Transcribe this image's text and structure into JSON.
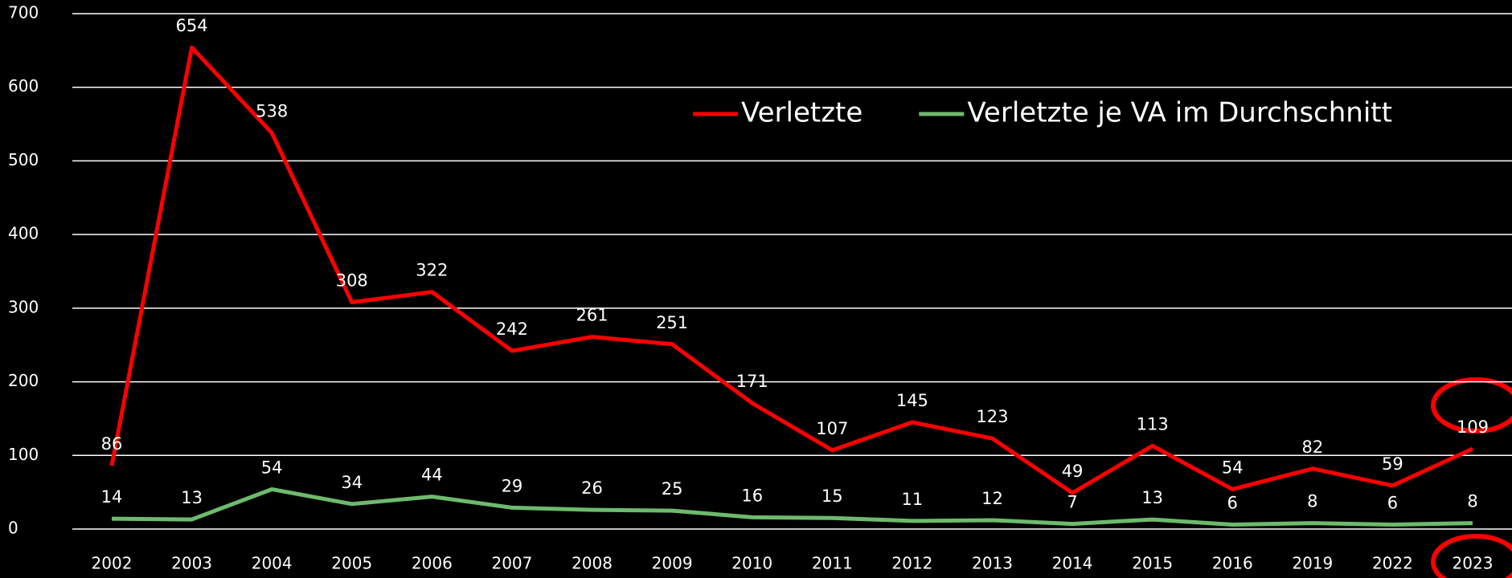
{
  "chart_data": {
    "type": "line",
    "categories": [
      "2002",
      "2003",
      "2004",
      "2005",
      "2006",
      "2007",
      "2008",
      "2009",
      "2010",
      "2011",
      "2012",
      "2013",
      "2014",
      "2015",
      "2016",
      "2019",
      "2022",
      "2023"
    ],
    "series": [
      {
        "name": "Verletzte",
        "color": "#ff0000",
        "values": [
          86,
          654,
          538,
          308,
          322,
          242,
          261,
          251,
          171,
          107,
          145,
          123,
          49,
          113,
          54,
          82,
          59,
          109
        ]
      },
      {
        "name": "Verletzte je VA im Durchschnitt",
        "color": "#6dba6d",
        "values": [
          14,
          13,
          54,
          34,
          44,
          29,
          26,
          25,
          16,
          15,
          11,
          12,
          7,
          13,
          6,
          8,
          6,
          8
        ]
      }
    ],
    "ylim": [
      0,
      700
    ],
    "yticks": [
      0,
      100,
      200,
      300,
      400,
      500,
      600,
      700
    ],
    "grid": true,
    "legend": "top-right"
  }
}
